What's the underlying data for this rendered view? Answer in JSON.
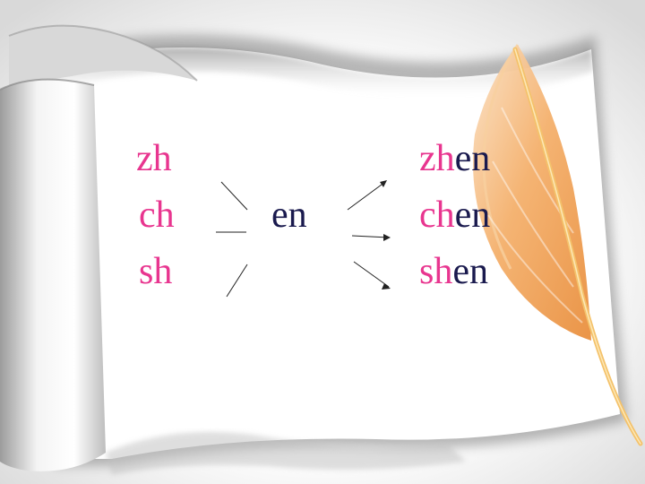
{
  "initials": [
    "zh",
    "ch",
    "sh"
  ],
  "final": "en",
  "results": [
    {
      "initial": "zh",
      "final": "en"
    },
    {
      "initial": "ch",
      "final": "en"
    },
    {
      "initial": "sh",
      "final": "en"
    }
  ],
  "colors": {
    "initial": "#e8358f",
    "final": "#1a1a4e",
    "paper": "#ffffff",
    "shadow": "#8a8a8a",
    "feather": "#f2b06a"
  },
  "icons": [
    "scroll-paper",
    "feather-quill"
  ]
}
